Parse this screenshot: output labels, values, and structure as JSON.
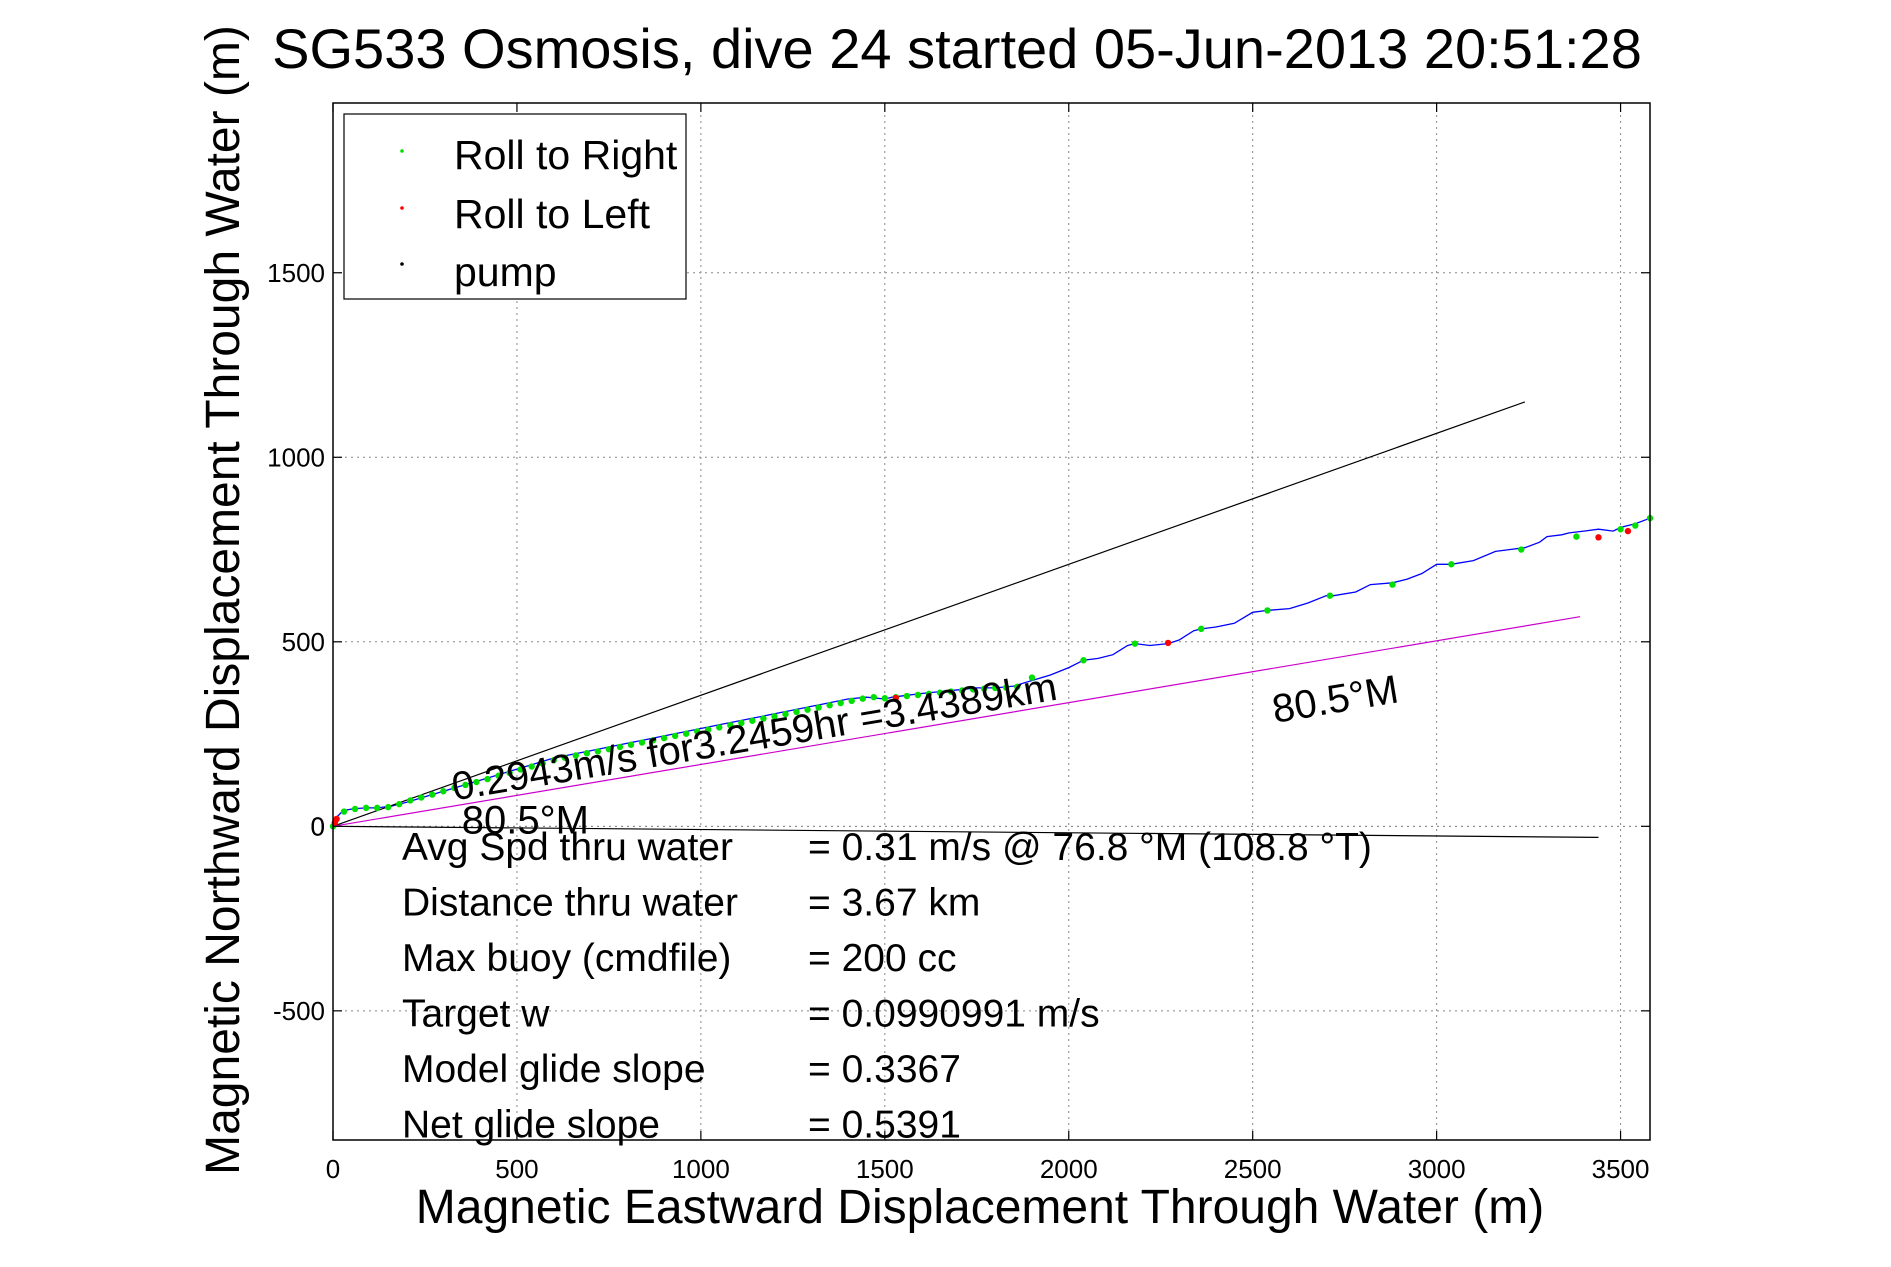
{
  "chart_data": {
    "type": "line",
    "title": "SG533 Osmosis, dive 24 started 05-Jun-2013 20:51:28",
    "xlabel": "Magnetic Eastward Displacement Through Water (m)",
    "ylabel": "Magnetic Northward Displacement Through Water (m)",
    "xlim": [
      0,
      3580
    ],
    "ylim": [
      -850,
      1960
    ],
    "xticks": [
      0,
      500,
      1000,
      1500,
      2000,
      2500,
      3000,
      3500
    ],
    "yticks": [
      -500,
      0,
      500,
      1000,
      1500
    ],
    "grid": true,
    "legend_position": "top-left",
    "legend": [
      {
        "label": "Roll to Right",
        "color": "#00e000"
      },
      {
        "label": "Roll to Left",
        "color": "#ff0000"
      },
      {
        "label": "pump",
        "color": "#000000"
      }
    ],
    "series": [
      {
        "style": "track",
        "color": "#0000ff",
        "x": [
          0,
          10,
          25,
          40,
          60,
          90,
          120,
          160,
          200,
          250,
          300,
          350,
          400,
          450,
          500,
          550,
          600,
          650,
          700,
          750,
          800,
          850,
          900,
          950,
          1000,
          1050,
          1100,
          1150,
          1200,
          1250,
          1300,
          1350,
          1400,
          1450,
          1500,
          1520,
          1560,
          1600,
          1650,
          1700,
          1750,
          1800,
          1850,
          1900,
          1950,
          2000,
          2040,
          2080,
          2120,
          2160,
          2180,
          2220,
          2270,
          2300,
          2340,
          2360,
          2400,
          2450,
          2500,
          2540,
          2600,
          2650,
          2700,
          2720,
          2780,
          2820,
          2880,
          2920,
          2960,
          3000,
          3040,
          3100,
          3160,
          3200,
          3240,
          3280,
          3300,
          3340,
          3360,
          3400,
          3440,
          3480,
          3500,
          3540,
          3580
        ],
        "y": [
          0,
          25,
          40,
          45,
          48,
          50,
          50,
          55,
          65,
          80,
          95,
          110,
          125,
          140,
          155,
          170,
          185,
          195,
          205,
          215,
          225,
          235,
          245,
          255,
          265,
          275,
          285,
          295,
          305,
          315,
          325,
          335,
          345,
          350,
          345,
          350,
          355,
          360,
          365,
          370,
          375,
          375,
          380,
          395,
          410,
          430,
          450,
          455,
          465,
          490,
          495,
          490,
          495,
          505,
          530,
          535,
          540,
          550,
          580,
          585,
          590,
          605,
          625,
          625,
          635,
          655,
          660,
          670,
          685,
          710,
          710,
          720,
          745,
          750,
          755,
          770,
          785,
          790,
          795,
          800,
          805,
          800,
          810,
          820,
          835
        ]
      },
      {
        "style": "pump-line",
        "color": "#000000",
        "x": [
          0,
          3240
        ],
        "y": [
          0,
          1150
        ]
      },
      {
        "style": "pump-line",
        "color": "#000000",
        "x": [
          0,
          3440
        ],
        "y": [
          0,
          -30
        ]
      },
      {
        "style": "heading-line",
        "color": "#cc00cc",
        "x": [
          0,
          3390
        ],
        "y": [
          0,
          568
        ]
      }
    ],
    "roll_right": {
      "x": [
        0,
        30,
        60,
        90,
        120,
        150,
        180,
        210,
        240,
        270,
        300,
        330,
        360,
        390,
        420,
        450,
        480,
        510,
        540,
        570,
        600,
        630,
        660,
        690,
        720,
        750,
        780,
        810,
        840,
        870,
        900,
        930,
        960,
        990,
        1020,
        1050,
        1080,
        1110,
        1140,
        1170,
        1200,
        1230,
        1260,
        1290,
        1320,
        1350,
        1380,
        1410,
        1440,
        1470,
        1500,
        1530,
        1560,
        1590,
        1620,
        1650,
        1680,
        1710,
        1740,
        1770,
        1800,
        1830,
        1860,
        1900,
        2040,
        2180,
        2360,
        2540,
        2710,
        2880,
        3040,
        3230,
        3380,
        3500,
        3540,
        3580
      ],
      "y": [
        0,
        40,
        47,
        50,
        50,
        52,
        60,
        70,
        78,
        86,
        95,
        104,
        112,
        120,
        128,
        137,
        145,
        154,
        162,
        170,
        179,
        186,
        192,
        198,
        203,
        209,
        215,
        221,
        227,
        233,
        239,
        245,
        251,
        257,
        262,
        268,
        274,
        280,
        286,
        292,
        298,
        304,
        310,
        316,
        322,
        328,
        334,
        340,
        346,
        350,
        347,
        350,
        353,
        356,
        359,
        362,
        365,
        368,
        371,
        373,
        375,
        376,
        378,
        403,
        450,
        495,
        535,
        585,
        625,
        655,
        710,
        750,
        785,
        805,
        815,
        835
      ]
    },
    "roll_left": {
      "x": [
        5,
        10,
        1530,
        2270,
        3440,
        3520
      ],
      "y": [
        10,
        20,
        348,
        497,
        783,
        800
      ]
    },
    "annotations": [
      {
        "text": "0.2943m/s for3.2459hr =3.4389km",
        "x": 330,
        "y": 70,
        "angle": -9.5
      },
      {
        "text": "80.5°M",
        "x": 350,
        "y": -20,
        "angle": 0
      },
      {
        "text": "80.5°M",
        "x": 2560,
        "y": 280,
        "angle": -9.5
      }
    ],
    "stats": [
      {
        "label": "Avg Spd thru water",
        "value": "=  0.31 m/s @  76.8 °M (108.8 °T)"
      },
      {
        "label": "Distance thru water",
        "value": "=  3.67 km"
      },
      {
        "label": "Max buoy (cmdfile)",
        "value": "= 200 cc"
      },
      {
        "label": "Target w",
        "value": "= 0.0990991 m/s"
      },
      {
        "label": "Model glide slope",
        "value": "= 0.3367"
      },
      {
        "label": "Net glide slope",
        "value": "= 0.5391"
      }
    ]
  }
}
